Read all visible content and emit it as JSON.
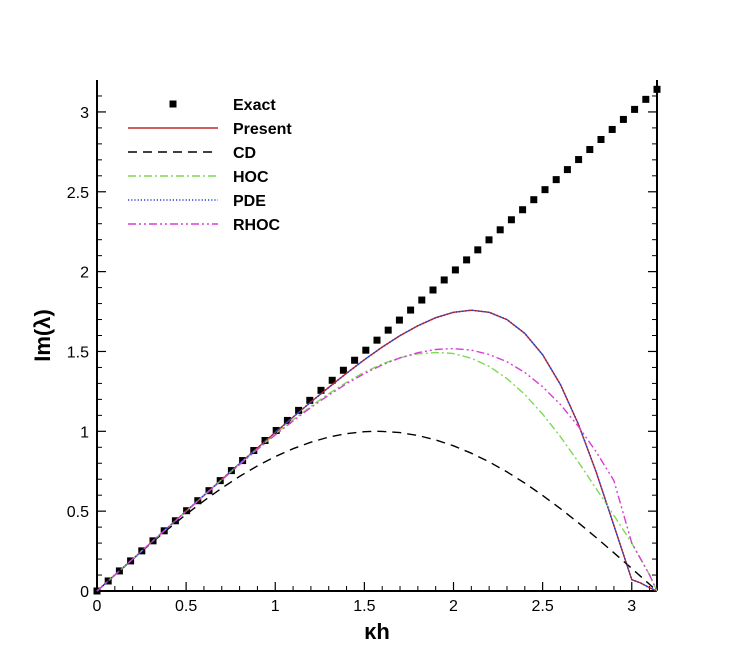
{
  "chart_data": {
    "type": "line",
    "title": "",
    "xlabel": "κh",
    "ylabel": "Im(λ)",
    "xlim": [
      0,
      3.14159
    ],
    "ylim": [
      0,
      3.2
    ],
    "x_ticks": [
      "0",
      "0.5",
      "1",
      "1.5",
      "2",
      "2.5",
      "3"
    ],
    "x_tick_values": [
      0,
      0.5,
      1,
      1.5,
      2,
      2.5,
      3
    ],
    "y_ticks": [
      "0",
      "0.5",
      "1",
      "1.5",
      "2",
      "2.5",
      "3"
    ],
    "y_tick_values": [
      0,
      0.5,
      1,
      1.5,
      2,
      2.5,
      3
    ],
    "grid": false,
    "legend_position": "top-left",
    "series": [
      {
        "name": "Exact",
        "style": "markers",
        "color": "#000000",
        "x": [
          0.0,
          0.0628,
          0.1257,
          0.1885,
          0.2513,
          0.3142,
          0.377,
          0.4398,
          0.5027,
          0.5655,
          0.6283,
          0.6912,
          0.754,
          0.8168,
          0.8796,
          0.9425,
          1.0053,
          1.0681,
          1.131,
          1.1938,
          1.2566,
          1.3195,
          1.3823,
          1.4451,
          1.508,
          1.5708,
          1.6336,
          1.6965,
          1.7593,
          1.8221,
          1.885,
          1.9478,
          2.0106,
          2.0735,
          2.1363,
          2.1991,
          2.2619,
          2.3248,
          2.3876,
          2.4504,
          2.5133,
          2.5761,
          2.6389,
          2.7018,
          2.7646,
          2.8274,
          2.8903,
          2.9531,
          3.0159,
          3.0788,
          3.1416
        ],
        "y": [
          0.0,
          0.0628,
          0.1257,
          0.1885,
          0.2513,
          0.3142,
          0.377,
          0.4398,
          0.5027,
          0.5655,
          0.6283,
          0.6912,
          0.754,
          0.8168,
          0.8796,
          0.9425,
          1.0053,
          1.0681,
          1.131,
          1.1938,
          1.2566,
          1.3195,
          1.3823,
          1.4451,
          1.508,
          1.5708,
          1.6336,
          1.6965,
          1.7593,
          1.8221,
          1.885,
          1.9478,
          2.0106,
          2.0735,
          2.1363,
          2.1991,
          2.2619,
          2.3248,
          2.3876,
          2.4504,
          2.5133,
          2.5761,
          2.6389,
          2.7018,
          2.7646,
          2.8274,
          2.8903,
          2.9531,
          3.0159,
          3.0788,
          3.1416
        ]
      },
      {
        "name": "Present",
        "style": "solid",
        "color": "#c02a2a",
        "x": [
          0.0,
          0.1,
          0.2,
          0.3,
          0.4,
          0.5,
          0.6,
          0.7,
          0.8,
          0.9,
          1.0,
          1.1,
          1.2,
          1.3,
          1.4,
          1.5,
          1.6,
          1.7,
          1.8,
          1.9,
          2.0,
          2.1,
          2.2,
          2.3,
          2.4,
          2.5,
          2.6,
          2.7,
          2.8,
          2.9,
          3.0,
          3.05,
          3.1,
          3.1416
        ],
        "y": [
          0.0,
          0.1,
          0.2,
          0.3,
          0.3999,
          0.4997,
          0.5993,
          0.6986,
          0.7975,
          0.8958,
          0.9931,
          1.0891,
          1.1834,
          1.2753,
          1.364,
          1.4485,
          1.5275,
          1.5992,
          1.6614,
          1.7113,
          1.7451,
          1.7583,
          1.7452,
          1.6994,
          1.6134,
          1.4797,
          1.2916,
          1.0459,
          0.7465,
          0.4099,
          0.0708,
          0.05,
          0.02,
          0.0
        ]
      },
      {
        "name": "CD",
        "style": "dashed",
        "color": "#000000",
        "x": [
          0.0,
          0.1,
          0.2,
          0.3,
          0.4,
          0.5,
          0.6,
          0.7,
          0.8,
          0.9,
          1.0,
          1.1,
          1.2,
          1.3,
          1.4,
          1.5,
          1.5708,
          1.6,
          1.7,
          1.8,
          1.9,
          2.0,
          2.1,
          2.2,
          2.3,
          2.4,
          2.5,
          2.6,
          2.7,
          2.8,
          2.9,
          3.0,
          3.1,
          3.1416
        ],
        "y": [
          0.0,
          0.0998,
          0.1987,
          0.2955,
          0.3894,
          0.4794,
          0.5646,
          0.6442,
          0.7174,
          0.7833,
          0.8415,
          0.8912,
          0.932,
          0.9636,
          0.9854,
          0.9975,
          1.0,
          0.9996,
          0.9917,
          0.9738,
          0.9463,
          0.9093,
          0.8632,
          0.8085,
          0.7457,
          0.6755,
          0.5985,
          0.5155,
          0.4274,
          0.335,
          0.2392,
          0.1411,
          0.0416,
          0.0
        ]
      },
      {
        "name": "HOC",
        "style": "dashdot",
        "color": "#7ed957",
        "x": [
          0.0,
          0.1,
          0.2,
          0.3,
          0.4,
          0.5,
          0.6,
          0.7,
          0.8,
          0.9,
          1.0,
          1.1,
          1.2,
          1.3,
          1.4,
          1.5,
          1.6,
          1.7,
          1.8,
          1.9,
          1.95,
          2.0,
          2.1,
          2.2,
          2.3,
          2.4,
          2.5,
          2.6,
          2.7,
          2.8,
          2.9,
          3.0,
          3.1,
          3.1416
        ],
        "y": [
          0.0,
          0.1,
          0.2,
          0.3,
          0.3999,
          0.4996,
          0.5989,
          0.6974,
          0.7947,
          0.8901,
          0.9829,
          1.0721,
          1.1568,
          1.2356,
          1.3072,
          1.3699,
          1.4219,
          1.4612,
          1.4857,
          1.4932,
          1.4915,
          1.4864,
          1.4579,
          1.4062,
          1.3303,
          1.2304,
          1.1078,
          0.9656,
          0.8084,
          0.6421,
          0.4735,
          0.3,
          0.1,
          0.0
        ]
      },
      {
        "name": "PDE",
        "style": "dotted",
        "color": "#1f3fd8",
        "x": [
          0.0,
          0.1,
          0.2,
          0.3,
          0.4,
          0.5,
          0.6,
          0.7,
          0.8,
          0.9,
          1.0,
          1.1,
          1.2,
          1.3,
          1.4,
          1.5,
          1.6,
          1.7,
          1.8,
          1.9,
          2.0,
          2.1,
          2.2,
          2.3,
          2.4,
          2.5,
          2.6,
          2.7,
          2.8,
          2.9,
          3.0,
          3.05,
          3.1,
          3.1416
        ],
        "y": [
          0.0,
          0.1,
          0.2,
          0.3,
          0.3999,
          0.4997,
          0.5993,
          0.6986,
          0.7975,
          0.8958,
          0.9931,
          1.0891,
          1.1834,
          1.2753,
          1.364,
          1.4485,
          1.5275,
          1.5992,
          1.6614,
          1.7113,
          1.7451,
          1.7583,
          1.7452,
          1.6994,
          1.6134,
          1.4797,
          1.2916,
          1.0459,
          0.7465,
          0.4099,
          0.0708,
          0.05,
          0.02,
          0.0
        ]
      },
      {
        "name": "RHOC",
        "style": "dashdotdot",
        "color": "#d63fd6",
        "x": [
          0.0,
          0.1,
          0.2,
          0.3,
          0.4,
          0.5,
          0.6,
          0.7,
          0.8,
          0.9,
          1.0,
          1.1,
          1.2,
          1.3,
          1.4,
          1.5,
          1.6,
          1.7,
          1.8,
          1.9,
          1.95,
          2.0,
          2.1,
          2.2,
          2.3,
          2.4,
          2.5,
          2.6,
          2.7,
          2.8,
          2.9,
          3.0,
          3.1,
          3.1416
        ],
        "y": [
          0.0,
          0.1,
          0.2,
          0.2999,
          0.3996,
          0.4989,
          0.5976,
          0.6953,
          0.7916,
          0.8859,
          0.9775,
          1.0655,
          1.1489,
          1.2268,
          1.2979,
          1.3613,
          1.4157,
          1.4598,
          1.4925,
          1.5124,
          1.5156,
          1.5182,
          1.5084,
          1.4813,
          1.4353,
          1.3686,
          1.2796,
          1.1674,
          1.0313,
          0.8721,
          0.6912,
          0.3,
          0.1,
          0.0
        ]
      }
    ]
  }
}
